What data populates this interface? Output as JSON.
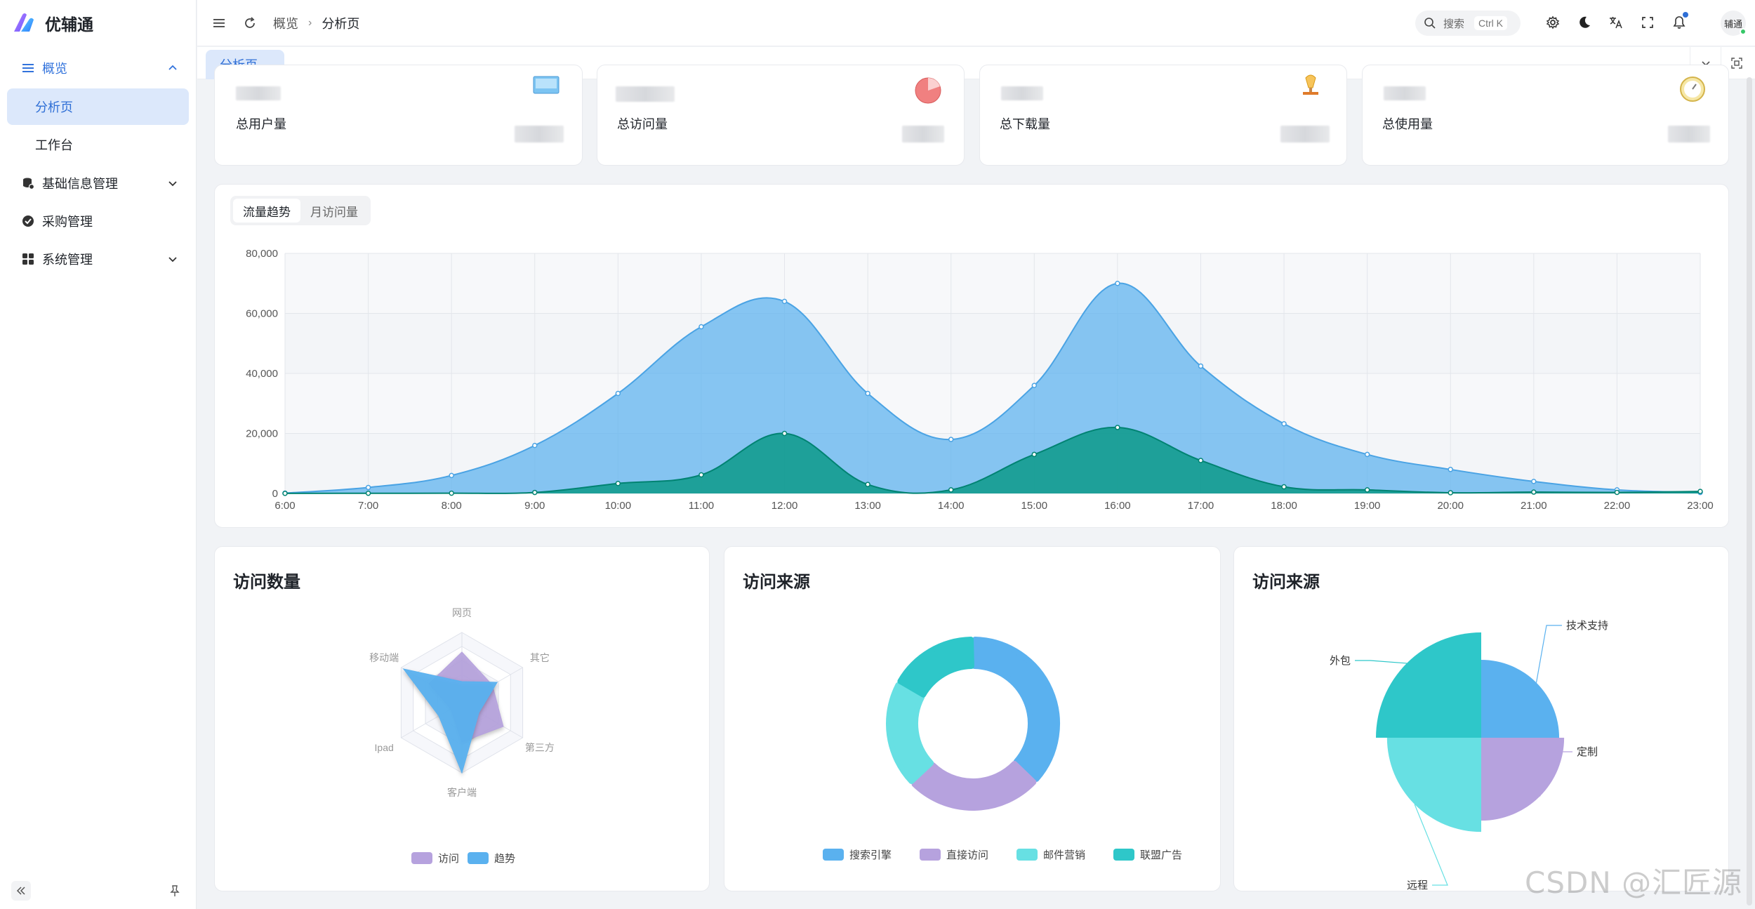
{
  "app": {
    "name": "优辅通"
  },
  "sidebar": {
    "groups": [
      {
        "label": "概览",
        "icon": "list-icon",
        "open": true,
        "children": [
          {
            "label": "分析页",
            "active": true
          },
          {
            "label": "工作台",
            "active": false
          }
        ]
      },
      {
        "label": "基础信息管理",
        "icon": "database-icon"
      },
      {
        "label": "采购管理",
        "icon": "check-badge-icon"
      },
      {
        "label": "系统管理",
        "icon": "grid-icon"
      }
    ]
  },
  "header": {
    "breadcrumb": [
      "概览",
      "分析页"
    ],
    "search": {
      "placeholder": "搜索",
      "shortcut": "Ctrl K"
    },
    "avatar_text": "辅通"
  },
  "tabs": [
    {
      "label": "分析页",
      "active": true
    }
  ],
  "stats": [
    {
      "label": "总用户量",
      "icon": "monitor-icon"
    },
    {
      "label": "总访问量",
      "icon": "pie-icon"
    },
    {
      "label": "总下载量",
      "icon": "lamp-icon"
    },
    {
      "label": "总使用量",
      "icon": "clock-icon"
    }
  ],
  "trend_tabs": [
    {
      "label": "流量趋势",
      "active": true
    },
    {
      "label": "月访问量",
      "active": false
    }
  ],
  "panels": {
    "radar_title": "访问数量",
    "donut_title": "访问来源",
    "rose_title": "访问来源"
  },
  "colors": {
    "accent": "#2f6fd6",
    "blue": "#5ab1ef",
    "teal": "#019680",
    "purple": "#b6a2de",
    "cyan": "#67e0e3",
    "turquoise": "#2ec7c9"
  },
  "watermark": "CSDN @汇匠源",
  "chart_data": [
    {
      "type": "area",
      "x": [
        "6:00",
        "7:00",
        "8:00",
        "9:00",
        "10:00",
        "11:00",
        "12:00",
        "13:00",
        "14:00",
        "15:00",
        "16:00",
        "17:00",
        "18:00",
        "19:00",
        "20:00",
        "21:00",
        "22:00",
        "23:00"
      ],
      "yticks": [
        "0",
        "20,000",
        "40,000",
        "60,000",
        "80,000"
      ],
      "ylim": [
        0,
        80000
      ],
      "series": [
        {
          "values": [
            111,
            2000,
            6000,
            16000,
            33333,
            55555,
            64000,
            33333,
            18000,
            36000,
            70000,
            42444,
            23222,
            13000,
            8000,
            4000,
            1200,
            333
          ]
        },
        {
          "values": [
            33,
            66,
            88,
            333,
            3333,
            6200,
            20000,
            3000,
            1200,
            13000,
            22000,
            11000,
            2221,
            1201,
            234,
            456,
            345,
            678
          ]
        }
      ],
      "grid": true
    },
    {
      "type": "radar",
      "indicators": [
        "网页",
        "其它",
        "第三方",
        "客户端",
        "Ipad",
        "移动端"
      ],
      "max": 100,
      "series": [
        {
          "name": "访问",
          "values": [
            72,
            50,
            68,
            56,
            18,
            54
          ]
        },
        {
          "name": "趋势",
          "values": [
            30,
            58,
            28,
            100,
            38,
            96
          ]
        }
      ],
      "legend": "bottom"
    },
    {
      "type": "pie",
      "variant": "donut",
      "series": [
        {
          "name": "搜索引擎",
          "value": 1048
        },
        {
          "name": "直接访问",
          "value": 735
        },
        {
          "name": "邮件营销",
          "value": 580
        },
        {
          "name": "联盟广告",
          "value": 484
        }
      ],
      "legend": "bottom"
    },
    {
      "type": "pie",
      "variant": "rose",
      "series": [
        {
          "name": "外包",
          "value": 500
        },
        {
          "name": "定制",
          "value": 310
        },
        {
          "name": "技术支持",
          "value": 274
        },
        {
          "name": "远程",
          "value": 400
        }
      ]
    }
  ]
}
